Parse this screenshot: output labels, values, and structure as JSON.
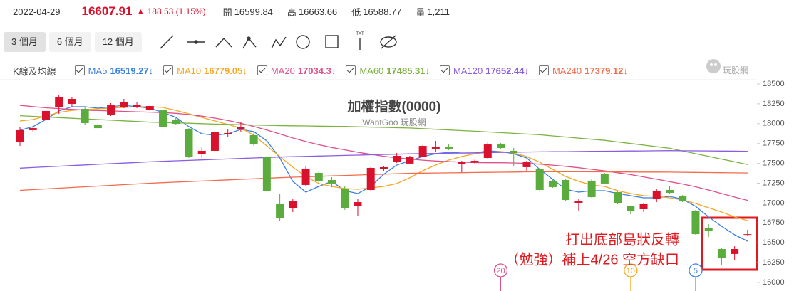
{
  "quote": {
    "date": "2022-04-29",
    "change": "▲ 188.53 (1.15%)",
    "open_label": "開",
    "high_label": "高",
    "low_label": "低",
    "volume_label": "量",
    "volume": "1,211"
  },
  "toolbar": {
    "ranges": [
      "3 個月",
      "6 個月",
      "12 個月"
    ],
    "text_tool": "TXT"
  },
  "legend_title": "K線及均線",
  "logo": "玩股網",
  "chart_data": {
    "type": "candlestick",
    "title": "加權指數(0000)",
    "subtitle": "WantGoo 玩股網",
    "up_color": "#d9112c",
    "down_color": "#5aac3c",
    "open": [
      17765,
      17918,
      18052,
      18204,
      18249,
      18186,
      17989,
      18115,
      18213,
      18213,
      18177,
      18168,
      18052,
      17935,
      17613,
      17658,
      17873,
      17926,
      17855,
      17577,
      16986,
      16932,
      17228,
      17380,
      17290,
      17183,
      16959,
      17165,
      17425,
      17523,
      17497,
      17586,
      17685,
      17703,
      17488,
      17510,
      17568,
      17738,
      17658,
      17452,
      17425,
      17282,
      17290,
      17003,
      17282,
      17371,
      17138,
      16959,
      16923,
      17048,
      17165,
      17093,
      16905,
      16690,
      16421,
      16359,
      16599.84
    ],
    "high": [
      17953,
      17962,
      18186,
      18366,
      18330,
      18204,
      17998,
      18258,
      18312,
      18276,
      18240,
      18186,
      18070,
      17944,
      17703,
      17918,
      17935,
      18016,
      17891,
      17595,
      17111,
      17057,
      17469,
      17407,
      17326,
      17210,
      17057,
      17452,
      17470,
      17631,
      17595,
      17730,
      17783,
      17738,
      17532,
      17545,
      17765,
      17756,
      17694,
      17532,
      17434,
      17290,
      17299,
      17048,
      17299,
      17380,
      17147,
      16968,
      17003,
      17174,
      17210,
      17102,
      16914,
      16735,
      16430,
      16457,
      16663.66
    ],
    "low": [
      17720,
      17900,
      18034,
      18124,
      18213,
      17980,
      17935,
      18097,
      18195,
      18195,
      18160,
      17846,
      17980,
      17568,
      17568,
      17640,
      17828,
      17900,
      17720,
      17138,
      16771,
      16887,
      17210,
      17246,
      17200,
      16915,
      16834,
      17156,
      17407,
      17505,
      17488,
      17577,
      17640,
      17667,
      17389,
      17500,
      17550,
      17685,
      17461,
      17407,
      17156,
      17192,
      17030,
      16905,
      17066,
      17237,
      16986,
      16860,
      16887,
      17012,
      17111,
      17012,
      16600,
      16574,
      16224,
      16278,
      16588.77
    ],
    "close": [
      17918,
      17944,
      18160,
      18339,
      18312,
      18007,
      17944,
      18231,
      18267,
      18240,
      18222,
      17962,
      17998,
      17586,
      17658,
      17891,
      17882,
      17962,
      17738,
      17156,
      16807,
      17030,
      17434,
      17273,
      17246,
      16932,
      17012,
      17443,
      17452,
      17595,
      17577,
      17720,
      17703,
      17685,
      17514,
      17532,
      17738,
      17694,
      17631,
      17514,
      17165,
      17201,
      17039,
      17030,
      17075,
      17246,
      16995,
      16896,
      16986,
      17156,
      17129,
      17021,
      16609,
      16645,
      16305,
      16421,
      16607.91
    ],
    "ma": [
      {
        "name": "MA5",
        "color": "#3b7fe0",
        "trend": "↓",
        "values": [
          17918,
          17962,
          18052,
          18160,
          18213,
          18213,
          18195,
          18213,
          18231,
          18213,
          18195,
          18142,
          18079,
          17962,
          17873,
          17855,
          17873,
          17927,
          17900,
          17783,
          17568,
          17273,
          17138,
          17210,
          17273,
          17156,
          17120,
          17210,
          17362,
          17479,
          17532,
          17586,
          17622,
          17640,
          17631,
          17631,
          17658,
          17649,
          17622,
          17568,
          17425,
          17299,
          17174,
          17138,
          17156,
          17156,
          17120,
          17093,
          17066,
          17066,
          17084,
          17048,
          16959,
          16825,
          16708,
          16600,
          16519.27
        ]
      },
      {
        "name": "MA10",
        "color": "#f5a623",
        "trend": "↓",
        "values": [
          18034,
          18052,
          18097,
          18142,
          18168,
          18177,
          18186,
          18195,
          18204,
          18213,
          18213,
          18204,
          18168,
          18124,
          18079,
          18034,
          17989,
          17944,
          17855,
          17720,
          17586,
          17452,
          17335,
          17246,
          17210,
          17183,
          17174,
          17192,
          17210,
          17246,
          17318,
          17407,
          17479,
          17541,
          17586,
          17622,
          17640,
          17649,
          17631,
          17586,
          17514,
          17425,
          17335,
          17273,
          17228,
          17210,
          17156,
          17120,
          17093,
          17084,
          17066,
          17039,
          16995,
          16941,
          16887,
          16825,
          16779.05
        ]
      },
      {
        "name": "MA20",
        "color": "#e0508a",
        "trend": "↓",
        "values": [
          18230,
          18215,
          18200,
          18190,
          18180,
          18170,
          18165,
          18160,
          18155,
          18150,
          18145,
          18140,
          18130,
          18115,
          18095,
          18070,
          18040,
          18005,
          17965,
          17920,
          17870,
          17820,
          17775,
          17735,
          17700,
          17670,
          17640,
          17615,
          17590,
          17570,
          17555,
          17540,
          17530,
          17522,
          17515,
          17510,
          17508,
          17508,
          17505,
          17500,
          17490,
          17478,
          17462,
          17445,
          17425,
          17405,
          17382,
          17358,
          17330,
          17300,
          17270,
          17240,
          17205,
          17165,
          17120,
          17075,
          17034.3
        ]
      },
      {
        "name": "MA60",
        "color": "#7cb342",
        "trend": "↓",
        "values": [
          18100,
          18092,
          18084,
          18076,
          18068,
          18060,
          18052,
          18044,
          18036,
          18028,
          18020,
          18015,
          18010,
          18005,
          18000,
          17995,
          17991,
          17987,
          17983,
          17979,
          17975,
          17973,
          17971,
          17969,
          17967,
          17965,
          17961,
          17957,
          17953,
          17949,
          17945,
          17937,
          17929,
          17921,
          17913,
          17905,
          17896,
          17887,
          17878,
          17869,
          17860,
          17846,
          17832,
          17818,
          17804,
          17790,
          17770,
          17750,
          17730,
          17710,
          17690,
          17656,
          17622,
          17588,
          17554,
          17520,
          17485.31
        ]
      },
      {
        "name": "MA120",
        "color": "#8a5ce0",
        "trend": "↓",
        "values": [
          17440,
          17448,
          17456,
          17464,
          17472,
          17480,
          17488,
          17496,
          17504,
          17512,
          17520,
          17526,
          17532,
          17538,
          17544,
          17550,
          17556,
          17562,
          17568,
          17574,
          17580,
          17584,
          17588,
          17592,
          17596,
          17600,
          17604,
          17608,
          17612,
          17616,
          17620,
          17623,
          17625,
          17628,
          17630,
          17633,
          17635,
          17638,
          17640,
          17643,
          17645,
          17647,
          17648,
          17650,
          17651,
          17653,
          17654,
          17656,
          17657,
          17659,
          17660,
          17659,
          17658,
          17657,
          17655,
          17654,
          17652.44
        ]
      },
      {
        "name": "MA240",
        "color": "#f26b4a",
        "trend": "↓",
        "values": [
          17160,
          17169,
          17178,
          17187,
          17196,
          17205,
          17214,
          17223,
          17232,
          17241,
          17250,
          17257,
          17264,
          17271,
          17278,
          17285,
          17292,
          17299,
          17306,
          17313,
          17320,
          17326,
          17331,
          17337,
          17342,
          17348,
          17353,
          17359,
          17364,
          17370,
          17375,
          17377,
          17379,
          17381,
          17383,
          17385,
          17387,
          17389,
          17391,
          17393,
          17395,
          17395,
          17394,
          17394,
          17393,
          17393,
          17392,
          17392,
          17391,
          17391,
          17390,
          17388,
          17386,
          17384,
          17383,
          17381,
          17379.12
        ]
      }
    ],
    "markers": [
      {
        "label": "20",
        "index": 37,
        "color": "#e0508a"
      },
      {
        "label": "10",
        "index": 47,
        "color": "#f5a623"
      },
      {
        "label": "5",
        "index": 52,
        "color": "#3b7fe0"
      }
    ],
    "annotations": [
      "打出底部島狀反轉",
      "（勉強）補上4/26 空方缺口"
    ],
    "ylim": [
      16000,
      18500
    ],
    "yticks": [
      16000,
      16250,
      16500,
      16750,
      17000,
      17250,
      17500,
      17750,
      18000,
      18250,
      18500
    ]
  }
}
